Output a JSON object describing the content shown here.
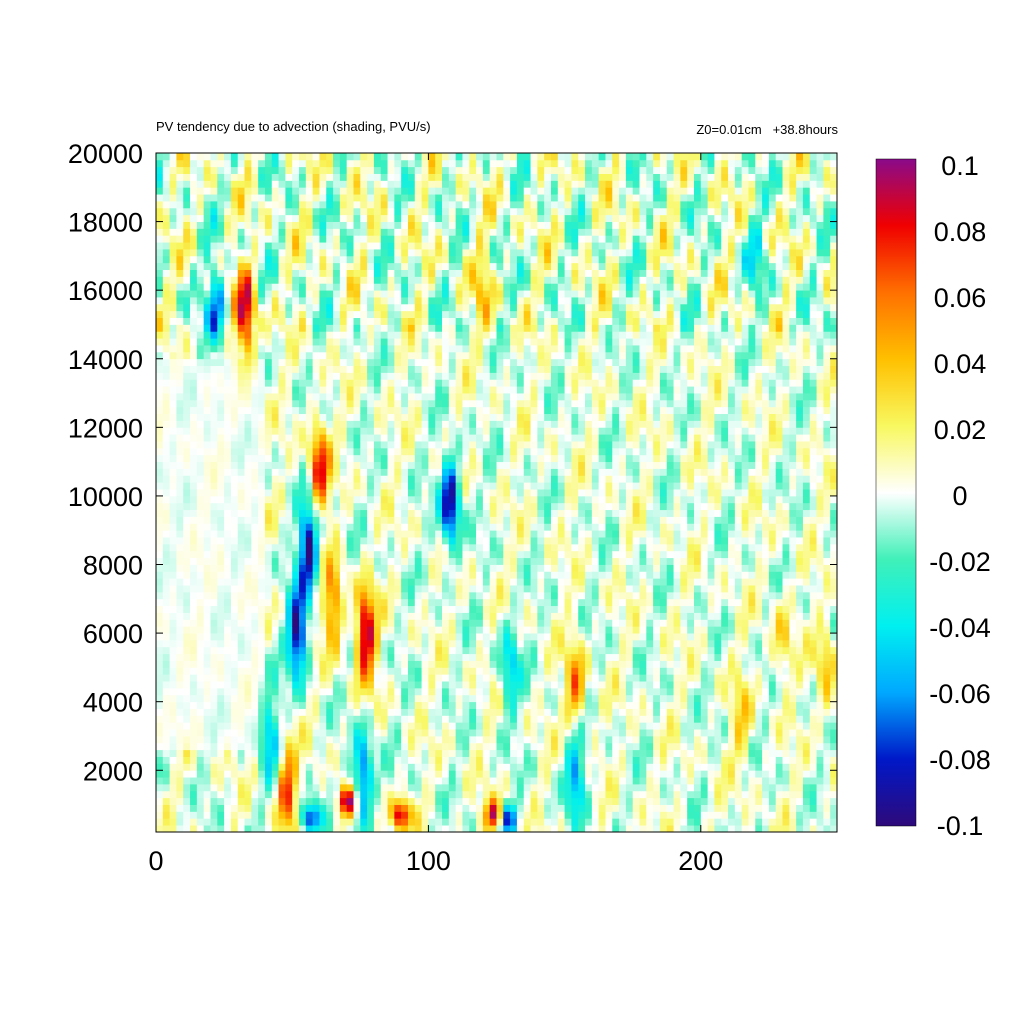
{
  "chart_data": {
    "type": "heatmap",
    "title": "PV tendency due to advection (shading, PVU/s)",
    "annotation": "Z0=0.01cm   +38.8hours",
    "xlabel": "",
    "ylabel": "",
    "xlim": [
      0,
      250
    ],
    "ylim": [
      200,
      20000
    ],
    "x_ticks": [
      "0",
      "100",
      "200"
    ],
    "y_ticks": [
      "2000",
      "4000",
      "6000",
      "8000",
      "10000",
      "12000",
      "14000",
      "16000",
      "18000",
      "20000"
    ],
    "colorbar": {
      "range": [
        -0.1,
        0.1
      ],
      "ticks": [
        "0.1",
        "0.08",
        "0.06",
        "0.04",
        "0.02",
        "0",
        "-0.02",
        "-0.04",
        "-0.06",
        "-0.08",
        "-0.1"
      ],
      "colors": [
        "#2e0a7a",
        "#0018c8",
        "#00a8ff",
        "#00f0f0",
        "#40f0b8",
        "#ffffff",
        "#f8f860",
        "#ffc000",
        "#ff7000",
        "#f00000",
        "#8a0a8a"
      ]
    },
    "features": [
      {
        "x": 52,
        "y": 6000,
        "value": -0.1
      },
      {
        "x": 56,
        "y": 8500,
        "value": -0.1
      },
      {
        "x": 108,
        "y": 9800,
        "value": -0.1
      },
      {
        "x": 77,
        "y": 6000,
        "value": 0.1
      },
      {
        "x": 60,
        "y": 10800,
        "value": 0.08
      },
      {
        "x": 33,
        "y": 15300,
        "value": 0.09
      },
      {
        "x": 22,
        "y": 15500,
        "value": -0.06
      },
      {
        "x": 42,
        "y": 3000,
        "value": -0.05
      },
      {
        "x": 48,
        "y": 1500,
        "value": 0.07
      },
      {
        "x": 57,
        "y": 600,
        "value": -0.09
      },
      {
        "x": 70,
        "y": 1100,
        "value": 0.1
      },
      {
        "x": 76,
        "y": 1800,
        "value": -0.08
      },
      {
        "x": 90,
        "y": 700,
        "value": 0.09
      },
      {
        "x": 124,
        "y": 700,
        "value": 0.09
      },
      {
        "x": 129,
        "y": 600,
        "value": -0.08
      },
      {
        "x": 154,
        "y": 1900,
        "value": -0.06
      },
      {
        "x": 154,
        "y": 4400,
        "value": 0.06
      },
      {
        "x": 130,
        "y": 5000,
        "value": -0.05
      },
      {
        "x": 65,
        "y": 6800,
        "value": 0.06
      },
      {
        "x": 215,
        "y": 3500,
        "value": 0.03
      },
      {
        "x": 230,
        "y": 5800,
        "value": 0.03
      },
      {
        "x": 246,
        "y": 5000,
        "value": 0.04
      },
      {
        "x": 120,
        "y": 16000,
        "value": 0.03
      },
      {
        "x": 220,
        "y": 16900,
        "value": -0.03
      }
    ]
  }
}
